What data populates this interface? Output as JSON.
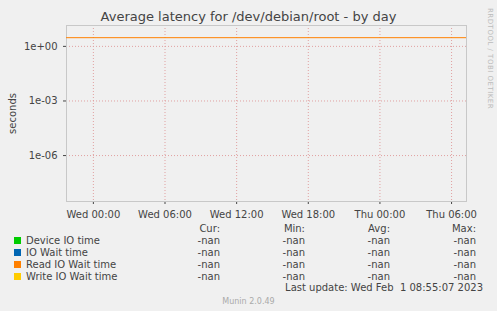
{
  "chart_data": {
    "type": "line",
    "title": "Average latency for /dev/debian/root - by day",
    "y_label": "seconds",
    "log": "y",
    "grid": true,
    "xlim": [
      -2.25,
      31.25
    ],
    "xticks": [
      {
        "value": 0,
        "label": "Wed 00:00"
      },
      {
        "value": 6,
        "label": "Wed 06:00"
      },
      {
        "value": 12,
        "label": "Wed 12:00"
      },
      {
        "value": 18,
        "label": "Wed 18:00"
      },
      {
        "value": 24,
        "label": "Thu 00:00"
      },
      {
        "value": 30,
        "label": "Thu 06:00"
      }
    ],
    "ylim": [
      3e-09,
      14
    ],
    "yticks": [
      {
        "value": 1,
        "label": "1e+00"
      },
      {
        "value": 0.001,
        "label": "1e-03"
      },
      {
        "value": 1e-06,
        "label": "1e-06"
      }
    ],
    "x": [
      -2.25,
      31.25
    ],
    "series": [
      {
        "name": "Device IO time",
        "color": "#00cc00",
        "values": [
          null,
          null
        ],
        "stats": [
          "-nan",
          "-nan",
          "-nan",
          "-nan"
        ]
      },
      {
        "name": "IO Wait time",
        "color": "#0066b3",
        "values": [
          null,
          null
        ],
        "stats": [
          "-nan",
          "-nan",
          "-nan",
          "-nan"
        ]
      },
      {
        "name": "Read IO Wait time",
        "color": "#ff8000",
        "values": [
          3,
          3
        ],
        "stats": [
          "-nan",
          "-nan",
          "-nan",
          "-nan"
        ]
      },
      {
        "name": "Write IO Wait time",
        "color": "#ffcc00",
        "values": [
          null,
          null
        ],
        "stats": [
          "-nan",
          "-nan",
          "-nan",
          "-nan"
        ]
      }
    ],
    "stats_columns": [
      "Cur:",
      "Min:",
      "Avg:",
      "Max:"
    ],
    "last_update": "Last update: Wed Feb  1 08:55:07 2023",
    "footer": "Munin 2.0.49",
    "watermark": "RRDTOOL / TOBI OETIKER"
  }
}
